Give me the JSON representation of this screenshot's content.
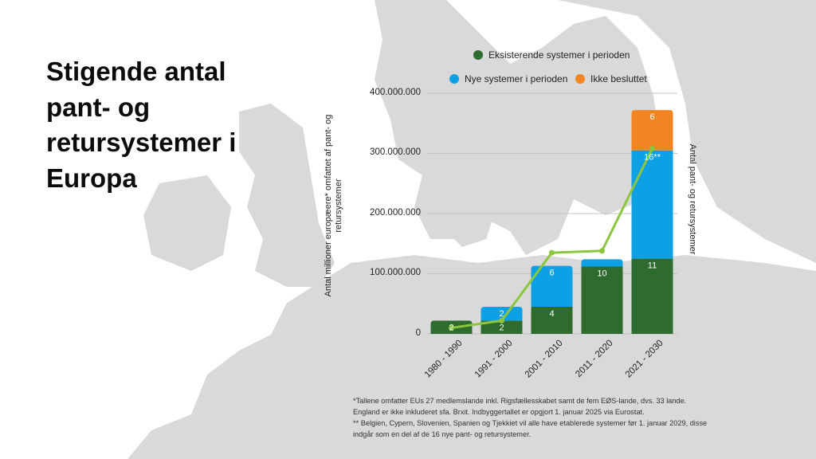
{
  "title": "Stigende antal pant- og retursystemer i Europa",
  "legend": {
    "existing": "Eksisterende systemer i perioden",
    "new": "Nye systemer i perioden",
    "undecided": "Ikke besluttet"
  },
  "colors": {
    "existing": "#2e6b2f",
    "new": "#0ea0e4",
    "undecided": "#f28421",
    "line": "#8cc63f",
    "map": "#d9d9d9"
  },
  "axis": {
    "ylabel_left": "Antal millioner europæere* omfattet af pant- og retursystemer",
    "ylabel_right": "Antal pant- og retursystemer",
    "yticks": [
      "0",
      "100.000.000",
      "200.000.000",
      "300.000.000",
      "400.000.000"
    ]
  },
  "chart_data": {
    "type": "bar",
    "title": "",
    "categories": [
      "1980 - 1990",
      "1991 - 2000",
      "2001 - 2010",
      "2011 - 2020",
      "2021 - 2030"
    ],
    "ylim": [
      0,
      400000000
    ],
    "grid": true,
    "legend_position": "top",
    "series": [
      {
        "name": "Eksisterende systemer i perioden",
        "values": [
          22000000,
          22000000,
          45000000,
          112000000,
          125000000
        ],
        "labels": [
          "2",
          "2",
          "4",
          "10",
          "11"
        ]
      },
      {
        "name": "Nye systemer i perioden",
        "values": [
          0,
          23000000,
          68000000,
          12000000,
          180000000
        ],
        "labels": [
          "",
          "2",
          "6",
          "",
          "16**"
        ]
      },
      {
        "name": "Ikke besluttet",
        "values": [
          0,
          0,
          0,
          0,
          67000000
        ],
        "labels": [
          "",
          "",
          "",
          "",
          "6"
        ]
      }
    ],
    "line": {
      "values": [
        10000000,
        22000000,
        135000000,
        138000000,
        308000000
      ]
    }
  },
  "footnotes": {
    "line1": "*Tallene omfatter EUs 27 medlemslande inkl. Rigsfællesskabet samt de fem EØS-lande, dvs. 33 lande.",
    "line2": "England er ikke inkluderet sfa. Brxit. Indbyggertallet er opgjort 1. januar 2025 via Eurostat.",
    "line3": "** Belgien, Cypern, Slovenien, Spanien og Tjekkiet vil alle have etablerede systemer før 1. januar 2029, disse",
    "line4": "indgår som en del af de 16 nye pant- og retursystemer."
  }
}
